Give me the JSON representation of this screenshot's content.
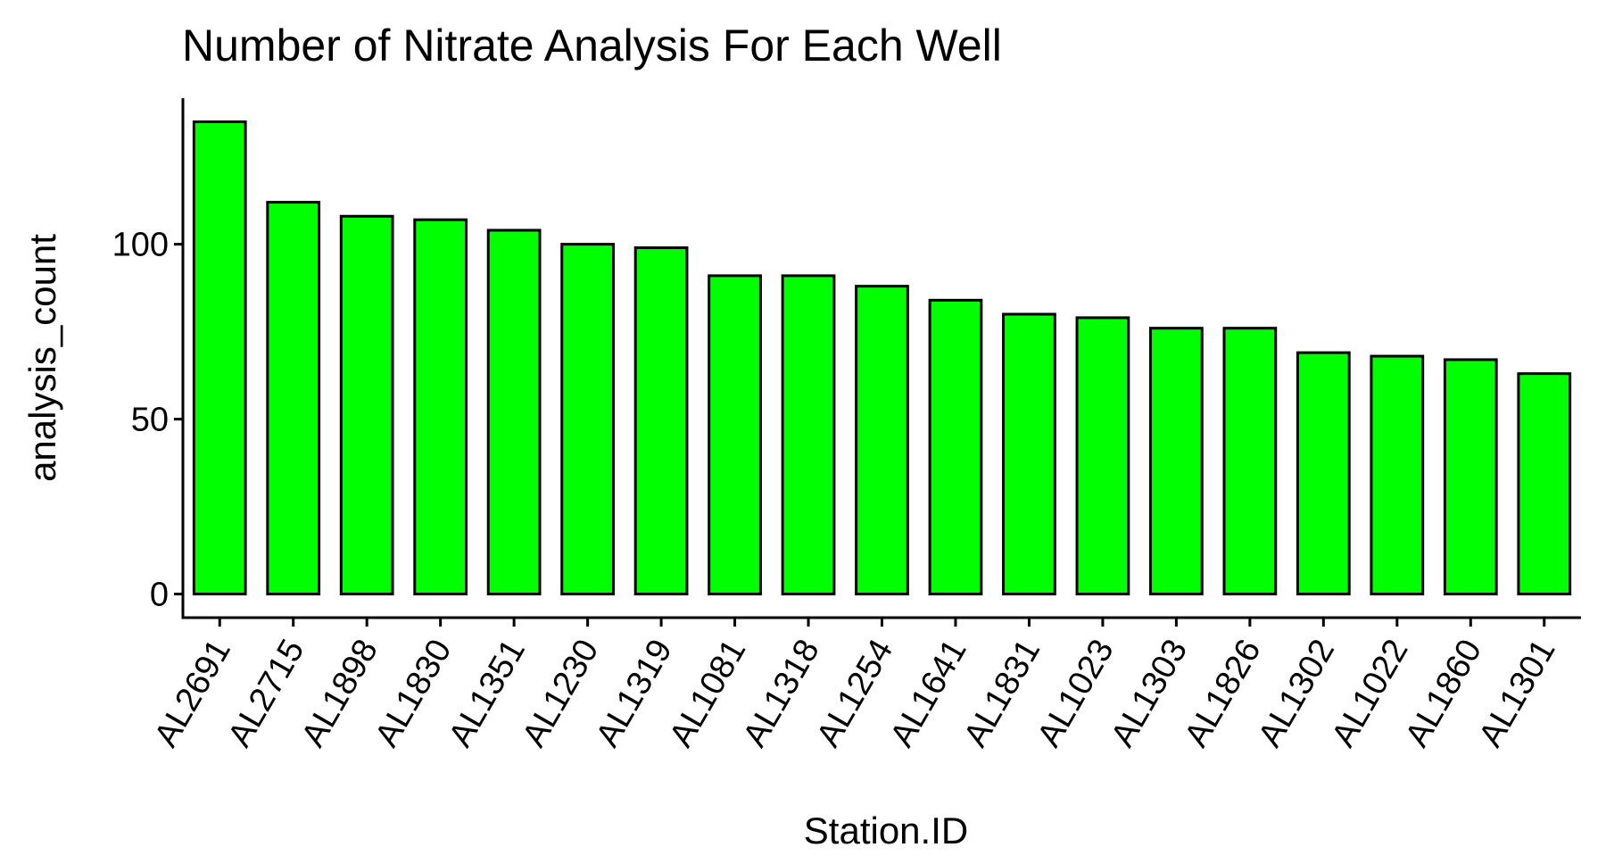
{
  "chart_data": {
    "type": "bar",
    "title": "Number of Nitrate Analysis For Each Well",
    "xlabel": "Station.ID",
    "ylabel": "analysis_count",
    "categories": [
      "AL2691",
      "AL2715",
      "AL1898",
      "AL1830",
      "AL1351",
      "AL1230",
      "AL1319",
      "AL1081",
      "AL1318",
      "AL1254",
      "AL1641",
      "AL1831",
      "AL1023",
      "AL1303",
      "AL1826",
      "AL1302",
      "AL1022",
      "AL1860",
      "AL1301"
    ],
    "values": [
      135,
      112,
      108,
      107,
      104,
      100,
      99,
      91,
      91,
      88,
      84,
      80,
      79,
      76,
      76,
      69,
      68,
      67,
      63
    ],
    "yticks": [
      0,
      50,
      100
    ],
    "ylim": [
      -6.75,
      141.75
    ],
    "bar_color": "#00ff00",
    "bar_outline": "#000000",
    "grid": false,
    "legend": false
  }
}
